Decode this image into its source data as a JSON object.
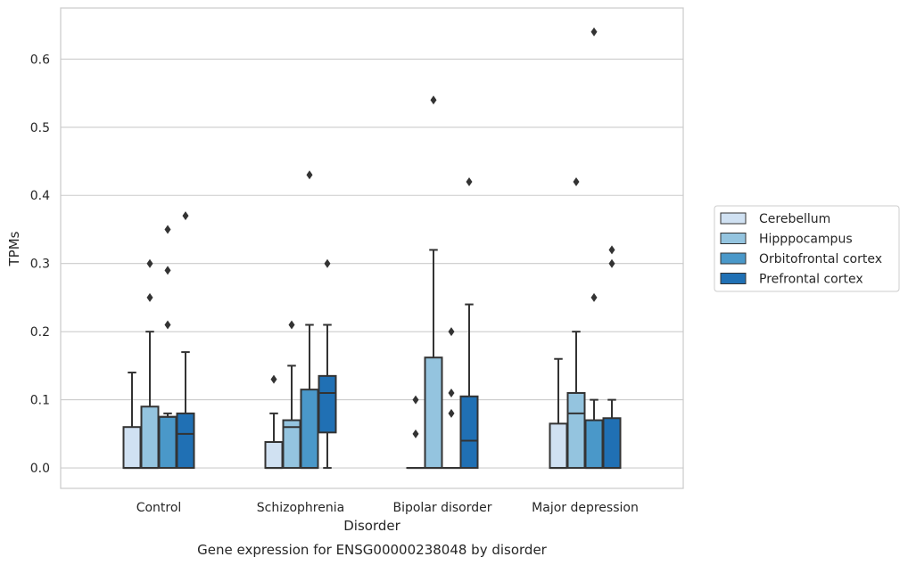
{
  "chart_data": {
    "type": "box",
    "caption": "Gene expression for ENSG00000238048 by disorder",
    "xlabel": "Disorder",
    "ylabel": "TPMs",
    "ylim": [
      -0.03,
      0.675
    ],
    "yticks": [
      0.0,
      0.1,
      0.2,
      0.3,
      0.4,
      0.5,
      0.6
    ],
    "ytick_labels": [
      "0.0",
      "0.1",
      "0.2",
      "0.3",
      "0.4",
      "0.5",
      "0.6"
    ],
    "grid": "horizontal",
    "legend_position": "right",
    "categories": [
      "Control",
      "Schizophrenia",
      "Bipolar disorder",
      "Major depression"
    ],
    "series": [
      {
        "name": "Cerebellum",
        "color": "#d0e1f2",
        "boxes": [
          {
            "min": 0.0,
            "q1": 0.0,
            "median": 0.0,
            "q3": 0.06,
            "max": 0.14,
            "outliers": []
          },
          {
            "min": 0.0,
            "q1": 0.0,
            "median": 0.0,
            "q3": 0.038,
            "max": 0.08,
            "outliers": [
              0.13
            ]
          },
          {
            "min": 0.0,
            "q1": 0.0,
            "median": 0.0,
            "q3": 0.0,
            "max": 0.0,
            "outliers": [
              0.05,
              0.1
            ]
          },
          {
            "min": 0.0,
            "q1": 0.0,
            "median": 0.0,
            "q3": 0.065,
            "max": 0.16,
            "outliers": []
          }
        ]
      },
      {
        "name": "Hipppocampus",
        "color": "#94c4df",
        "boxes": [
          {
            "min": 0.0,
            "q1": 0.0,
            "median": 0.0,
            "q3": 0.09,
            "max": 0.2,
            "outliers": [
              0.25,
              0.3
            ]
          },
          {
            "min": 0.0,
            "q1": 0.0,
            "median": 0.06,
            "q3": 0.07,
            "max": 0.15,
            "outliers": [
              0.21
            ]
          },
          {
            "min": 0.0,
            "q1": 0.0,
            "median": 0.0,
            "q3": 0.162,
            "max": 0.32,
            "outliers": [
              0.54
            ]
          },
          {
            "min": 0.0,
            "q1": 0.0,
            "median": 0.08,
            "q3": 0.11,
            "max": 0.2,
            "outliers": [
              0.42
            ]
          }
        ]
      },
      {
        "name": "Orbitofrontal cortex",
        "color": "#4a98c9",
        "boxes": [
          {
            "min": 0.0,
            "q1": 0.0,
            "median": 0.075,
            "q3": 0.075,
            "max": 0.08,
            "outliers": [
              0.21,
              0.29,
              0.35
            ]
          },
          {
            "min": 0.0,
            "q1": 0.0,
            "median": 0.0,
            "q3": 0.115,
            "max": 0.21,
            "outliers": [
              0.43
            ]
          },
          {
            "min": 0.0,
            "q1": 0.0,
            "median": 0.0,
            "q3": 0.0,
            "max": 0.0,
            "outliers": [
              0.08,
              0.11,
              0.2
            ]
          },
          {
            "min": 0.0,
            "q1": 0.0,
            "median": 0.0,
            "q3": 0.07,
            "max": 0.1,
            "outliers": [
              0.25,
              0.64
            ]
          }
        ]
      },
      {
        "name": "Prefrontal cortex",
        "color": "#2070b4",
        "boxes": [
          {
            "min": 0.0,
            "q1": 0.0,
            "median": 0.05,
            "q3": 0.08,
            "max": 0.17,
            "outliers": [
              0.37
            ]
          },
          {
            "min": 0.0,
            "q1": 0.052,
            "median": 0.11,
            "q3": 0.135,
            "max": 0.21,
            "outliers": [
              0.3
            ]
          },
          {
            "min": 0.0,
            "q1": 0.0,
            "median": 0.04,
            "q3": 0.105,
            "max": 0.24,
            "outliers": [
              0.42
            ]
          },
          {
            "min": 0.0,
            "q1": 0.0,
            "median": 0.0,
            "q3": 0.073,
            "max": 0.1,
            "outliers": [
              0.3,
              0.32
            ]
          }
        ]
      }
    ]
  },
  "colors": {
    "edge": "#333333",
    "grid": "#cccccc",
    "frame": "#cccccc",
    "text": "#262626"
  }
}
